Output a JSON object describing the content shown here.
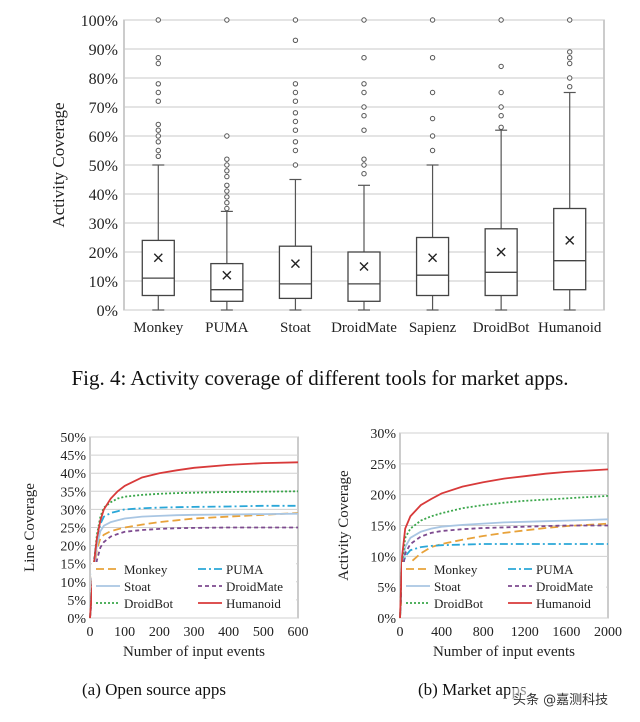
{
  "figure_caption": "Fig. 4: Activity coverage of different tools for market apps.",
  "subcaption_a": "(a) Open source apps",
  "subcaption_b": "(b) Market apps",
  "watermark": "头条 @嘉测科技",
  "chart_data": [
    {
      "type": "boxplot",
      "ylabel": "Activity Coverage",
      "ylim": [
        0,
        100
      ],
      "yticks": [
        "0%",
        "10%",
        "20%",
        "30%",
        "40%",
        "50%",
        "60%",
        "70%",
        "80%",
        "90%",
        "100%"
      ],
      "grid": true,
      "categories": [
        "Monkey",
        "PUMA",
        "Stoat",
        "DroidMate",
        "Sapienz",
        "DroidBot",
        "Humanoid"
      ],
      "boxes": [
        {
          "min": 0,
          "q1": 5,
          "median": 11,
          "q3": 24,
          "max": 50,
          "mean": 18,
          "outliers": [
            100,
            87,
            85,
            78,
            75,
            72,
            64,
            62,
            60,
            58,
            55,
            53
          ]
        },
        {
          "min": 0,
          "q1": 3,
          "median": 7,
          "q3": 16,
          "max": 34,
          "mean": 12,
          "outliers": [
            100,
            60,
            52,
            50,
            48,
            46,
            43,
            41,
            39,
            37,
            35
          ]
        },
        {
          "min": 0,
          "q1": 4,
          "median": 9,
          "q3": 22,
          "max": 45,
          "mean": 16,
          "outliers": [
            100,
            93,
            78,
            75,
            72,
            68,
            65,
            62,
            58,
            55,
            50
          ]
        },
        {
          "min": 0,
          "q1": 3,
          "median": 9,
          "q3": 20,
          "max": 43,
          "mean": 15,
          "outliers": [
            100,
            87,
            78,
            75,
            70,
            67,
            62,
            52,
            50,
            47
          ]
        },
        {
          "min": 0,
          "q1": 5,
          "median": 12,
          "q3": 25,
          "max": 50,
          "mean": 18,
          "outliers": [
            100,
            87,
            75,
            66,
            60,
            55
          ]
        },
        {
          "min": 0,
          "q1": 5,
          "median": 13,
          "q3": 28,
          "max": 62,
          "mean": 20,
          "outliers": [
            100,
            84,
            75,
            70,
            67,
            63
          ]
        },
        {
          "min": 0,
          "q1": 7,
          "median": 17,
          "q3": 35,
          "max": 75,
          "mean": 24,
          "outliers": [
            100,
            89,
            87,
            85,
            80,
            77
          ]
        }
      ]
    },
    {
      "type": "line",
      "xlabel": "Number of input events",
      "ylabel": "Line Coverage",
      "xlim": [
        0,
        600
      ],
      "ylim": [
        0,
        50
      ],
      "xticks": [
        "0",
        "100",
        "200",
        "300",
        "400",
        "500",
        "600"
      ],
      "yticks": [
        "0%",
        "5%",
        "10%",
        "15%",
        "20%",
        "25%",
        "30%",
        "35%",
        "40%",
        "45%",
        "50%"
      ],
      "grid": true,
      "x": [
        0,
        10,
        20,
        30,
        40,
        60,
        80,
        100,
        150,
        200,
        250,
        300,
        400,
        500,
        600
      ],
      "series": [
        {
          "name": "Monkey",
          "color": "#e8a23a",
          "dash": "8,4",
          "values": [
            0,
            12,
            19,
            22,
            23,
            24,
            24.5,
            25,
            25.8,
            26.5,
            27,
            27.5,
            28,
            28.5,
            29
          ]
        },
        {
          "name": "PUMA",
          "color": "#2aa7d8",
          "dash": "8,3,2,3",
          "values": [
            0,
            15,
            22,
            26,
            28,
            29,
            29.5,
            30,
            30.3,
            30.5,
            30.6,
            30.7,
            30.8,
            31,
            31
          ]
        },
        {
          "name": "Stoat",
          "color": "#a9c6e3",
          "dash": "",
          "values": [
            0,
            13,
            20,
            24,
            25.5,
            26.5,
            27,
            27.5,
            28,
            28.2,
            28.4,
            28.5,
            28.6,
            28.7,
            28.8
          ]
        },
        {
          "name": "DroidMate",
          "color": "#7d4a8f",
          "dash": "4,3",
          "values": [
            0,
            10,
            16,
            19.5,
            21,
            22.5,
            23.2,
            23.8,
            24.3,
            24.6,
            24.8,
            24.9,
            25,
            25,
            25
          ]
        },
        {
          "name": "DroidBot",
          "color": "#3aa64a",
          "dash": "2,2",
          "values": [
            0,
            14,
            23,
            28,
            30.5,
            32,
            33,
            33.5,
            34,
            34.3,
            34.5,
            34.6,
            34.8,
            34.9,
            35
          ]
        },
        {
          "name": "Humanoid",
          "color": "#d83a3a",
          "dash": "",
          "values": [
            0,
            14,
            22,
            27,
            30,
            33,
            35,
            36.5,
            38.8,
            40,
            40.8,
            41.5,
            42.3,
            42.8,
            43
          ]
        }
      ],
      "legend": "bottom-center"
    },
    {
      "type": "line",
      "xlabel": "Number of input events",
      "ylabel": "Activity Coverage",
      "xlim": [
        0,
        2000
      ],
      "ylim": [
        0,
        30
      ],
      "xticks": [
        "0",
        "400",
        "800",
        "1200",
        "1600",
        "2000"
      ],
      "yticks": [
        "0%",
        "5%",
        "10%",
        "15%",
        "20%",
        "25%",
        "30%"
      ],
      "grid": true,
      "x": [
        0,
        20,
        50,
        100,
        200,
        300,
        400,
        600,
        800,
        1000,
        1200,
        1400,
        1600,
        1800,
        2000
      ],
      "series": [
        {
          "name": "Monkey",
          "color": "#e8a23a",
          "dash": "8,4",
          "values": [
            0,
            5,
            7.5,
            9,
            10.5,
            11.5,
            12,
            12.7,
            13.3,
            13.8,
            14.2,
            14.6,
            14.9,
            15.1,
            15.3
          ]
        },
        {
          "name": "PUMA",
          "color": "#2aa7d8",
          "dash": "8,3,2,3",
          "values": [
            0,
            7,
            10,
            11,
            11.5,
            11.7,
            11.8,
            11.9,
            12,
            12,
            12,
            12,
            12,
            12,
            12
          ]
        },
        {
          "name": "Stoat",
          "color": "#a9c6e3",
          "dash": "",
          "values": [
            0,
            8,
            11.5,
            13,
            14,
            14.5,
            14.8,
            15.1,
            15.3,
            15.5,
            15.6,
            15.7,
            15.8,
            15.9,
            16
          ]
        },
        {
          "name": "DroidMate",
          "color": "#7d4a8f",
          "dash": "4,3",
          "values": [
            0,
            7,
            10.5,
            12,
            13.2,
            13.8,
            14.1,
            14.4,
            14.6,
            14.7,
            14.8,
            14.9,
            15,
            15,
            15
          ]
        },
        {
          "name": "DroidBot",
          "color": "#3aa64a",
          "dash": "2,2",
          "values": [
            0,
            9,
            13,
            14.5,
            15.8,
            16.5,
            17,
            17.8,
            18.3,
            18.7,
            19,
            19.2,
            19.4,
            19.6,
            19.8
          ]
        },
        {
          "name": "Humanoid",
          "color": "#d83a3a",
          "dash": "",
          "values": [
            0,
            10,
            14.5,
            16.5,
            18.3,
            19.3,
            20.2,
            21.3,
            22,
            22.6,
            23,
            23.4,
            23.7,
            23.9,
            24.1
          ]
        }
      ],
      "legend": "bottom-center"
    }
  ]
}
